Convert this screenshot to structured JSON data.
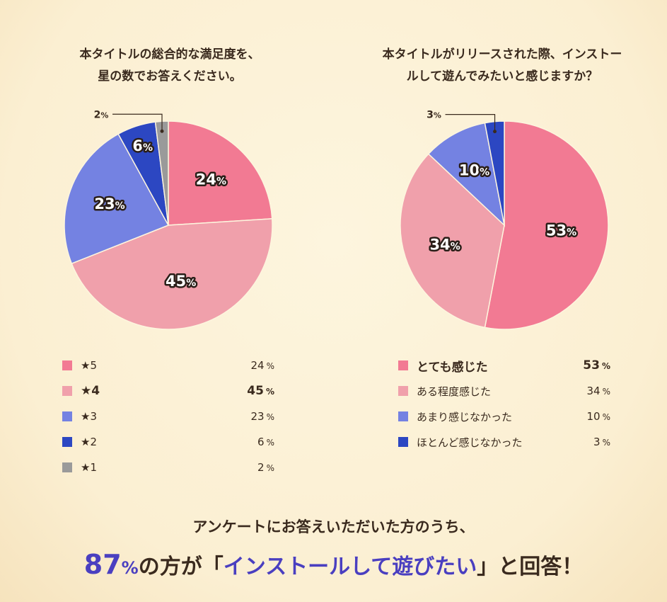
{
  "colors": {
    "pink": "#f27a93",
    "lightpink": "#f0a0ab",
    "blue": "#7482e2",
    "darkblue": "#2c47c2",
    "gray": "#9a9a9a",
    "accent": "#4a3fc0"
  },
  "chart_data": [
    {
      "type": "pie",
      "title_lines": [
        "本タイトルの総合的な満足度を、",
        "星の数でお答えください。"
      ],
      "categories": [
        "★5",
        "★4",
        "★3",
        "★2",
        "★1"
      ],
      "values": [
        24,
        45,
        23,
        6,
        2
      ],
      "colors": [
        "#f27a93",
        "#f0a0ab",
        "#7482e2",
        "#2c47c2",
        "#9a9a9a"
      ],
      "highlight": 1,
      "unit": "%"
    },
    {
      "type": "pie",
      "title_lines": [
        "本タイトルがリリースされた際、インストー",
        "ルして遊んでみたいと感じますか？"
      ],
      "categories": [
        "とても感じた",
        "ある程度感じた",
        "あまり感じなかった",
        "ほとんど感じなかった"
      ],
      "values": [
        53,
        34,
        10,
        3
      ],
      "colors": [
        "#f27a93",
        "#f0a0ab",
        "#7482e2",
        "#2c47c2"
      ],
      "highlight": 0,
      "unit": "%"
    }
  ],
  "footer": {
    "line1": "アンケートにお答えいただいた方のうち、",
    "pct": "87",
    "pct_unit": "%",
    "mid": "の方が「",
    "quote": "インストールして遊びたい",
    "end": "」と回答！"
  }
}
